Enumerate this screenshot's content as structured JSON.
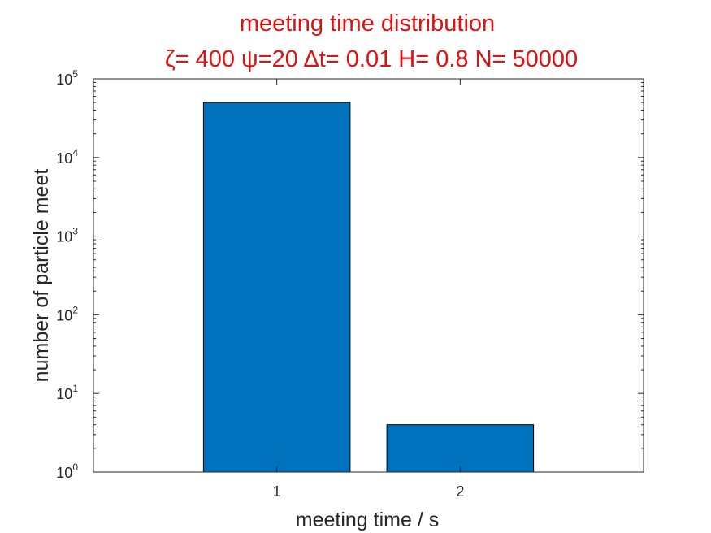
{
  "chart_data": {
    "type": "bar",
    "title": "meeting time distribution",
    "subtitle": "ζ= 400 ψ=20 Δt= 0.01 H= 0.8 N= 50000",
    "xlabel": "meeting time / s",
    "ylabel": "number of particle meet",
    "categories": [
      "1",
      "2"
    ],
    "values": [
      50000,
      4
    ],
    "x": [
      1,
      2
    ],
    "xlim": [
      0,
      3
    ],
    "ylim": [
      1,
      100000
    ],
    "yscale": "log",
    "yticks": [
      {
        "base": "10",
        "exp": "0"
      },
      {
        "base": "10",
        "exp": "1"
      },
      {
        "base": "10",
        "exp": "2"
      },
      {
        "base": "10",
        "exp": "3"
      },
      {
        "base": "10",
        "exp": "4"
      },
      {
        "base": "10",
        "exp": "5"
      }
    ],
    "bar_color": "#0072bd",
    "title_color": "#e01010",
    "grid": false,
    "legend": "none"
  }
}
